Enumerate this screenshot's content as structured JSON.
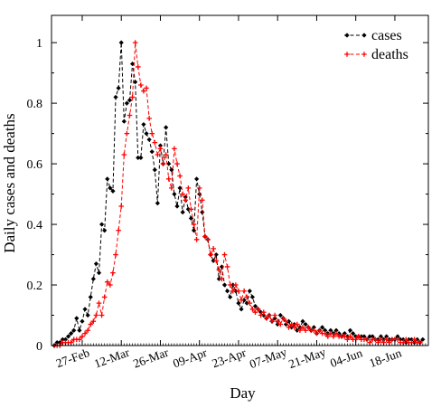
{
  "chart_data": {
    "type": "line",
    "title": "",
    "xlabel": "Day",
    "ylabel": "Daily cases and deaths",
    "ylim": [
      0,
      1.09
    ],
    "yticks": [
      0,
      0.2,
      0.4,
      0.6,
      0.8,
      1
    ],
    "ytick_labels": [
      "0",
      "0.2",
      "0.4",
      "0.6",
      "0.8",
      "1"
    ],
    "xlim": [
      "2020-02-16",
      "2020-06-30"
    ],
    "x_start": "2020-02-17",
    "xticks": [
      "2020-02-27",
      "2020-03-12",
      "2020-03-26",
      "2020-04-09",
      "2020-04-23",
      "2020-05-07",
      "2020-05-21",
      "2020-06-04",
      "2020-06-18"
    ],
    "xtick_labels": [
      "27-Feb",
      "12-Mar",
      "26-Mar",
      "09-Apr",
      "23-Apr",
      "07-May",
      "21-May",
      "04-Jun",
      "18-Jun"
    ],
    "grid": false,
    "legend_position": "top-right",
    "series": [
      {
        "name": "cases",
        "color": "#000000",
        "marker": "diamond",
        "values": [
          0.0,
          0.01,
          0.01,
          0.02,
          0.02,
          0.03,
          0.04,
          0.05,
          0.09,
          0.05,
          0.08,
          0.12,
          0.1,
          0.16,
          0.22,
          0.27,
          0.24,
          0.4,
          0.38,
          0.55,
          0.52,
          0.51,
          0.82,
          0.85,
          1.0,
          0.74,
          0.8,
          0.81,
          0.93,
          0.87,
          0.62,
          0.62,
          0.73,
          0.7,
          0.68,
          0.64,
          0.58,
          0.47,
          0.66,
          0.6,
          0.72,
          0.6,
          0.58,
          0.5,
          0.46,
          0.52,
          0.44,
          0.49,
          0.45,
          0.42,
          0.38,
          0.55,
          0.5,
          0.44,
          0.36,
          0.35,
          0.3,
          0.28,
          0.3,
          0.22,
          0.26,
          0.2,
          0.18,
          0.16,
          0.2,
          0.18,
          0.14,
          0.12,
          0.15,
          0.14,
          0.18,
          0.16,
          0.13,
          0.12,
          0.11,
          0.1,
          0.09,
          0.1,
          0.08,
          0.09,
          0.07,
          0.1,
          0.09,
          0.07,
          0.08,
          0.06,
          0.07,
          0.05,
          0.06,
          0.08,
          0.07,
          0.06,
          0.05,
          0.06,
          0.04,
          0.05,
          0.06,
          0.05,
          0.04,
          0.05,
          0.04,
          0.05,
          0.04,
          0.03,
          0.04,
          0.03,
          0.05,
          0.04,
          0.03,
          0.03,
          0.03,
          0.03,
          0.02,
          0.03,
          0.03,
          0.02,
          0.02,
          0.03,
          0.02,
          0.03,
          0.02,
          0.02,
          0.02,
          0.03,
          0.02,
          0.02,
          0.01,
          0.02,
          0.02,
          0.01,
          0.02,
          0.01,
          0.02
        ]
      },
      {
        "name": "deaths",
        "color": "#ff0000",
        "marker": "plus",
        "values": [
          0.0,
          0.0,
          0.0,
          0.01,
          0.01,
          0.01,
          0.01,
          0.02,
          0.02,
          0.02,
          0.03,
          0.04,
          0.05,
          0.07,
          0.08,
          0.1,
          0.14,
          0.1,
          0.16,
          0.21,
          0.2,
          0.24,
          0.3,
          0.38,
          0.46,
          0.63,
          0.7,
          0.76,
          0.82,
          1.0,
          0.92,
          0.86,
          0.84,
          0.85,
          0.75,
          0.7,
          0.67,
          0.63,
          0.65,
          0.6,
          0.63,
          0.55,
          0.52,
          0.65,
          0.6,
          0.56,
          0.5,
          0.48,
          0.52,
          0.45,
          0.4,
          0.35,
          0.52,
          0.48,
          0.36,
          0.35,
          0.3,
          0.32,
          0.28,
          0.25,
          0.22,
          0.3,
          0.26,
          0.2,
          0.18,
          0.2,
          0.18,
          0.15,
          0.18,
          0.16,
          0.14,
          0.12,
          0.11,
          0.12,
          0.1,
          0.11,
          0.09,
          0.1,
          0.08,
          0.1,
          0.08,
          0.07,
          0.09,
          0.08,
          0.06,
          0.07,
          0.06,
          0.07,
          0.05,
          0.06,
          0.05,
          0.06,
          0.05,
          0.05,
          0.04,
          0.05,
          0.04,
          0.04,
          0.03,
          0.04,
          0.03,
          0.04,
          0.03,
          0.03,
          0.03,
          0.02,
          0.03,
          0.02,
          0.02,
          0.03,
          0.02,
          0.02,
          0.02,
          0.01,
          0.02,
          0.02,
          0.01,
          0.02,
          0.01,
          0.02,
          0.01,
          0.02,
          0.02,
          0.02,
          0.01,
          0.01,
          0.02,
          0.01,
          0.01,
          0.02,
          0.01,
          0.01
        ]
      }
    ]
  }
}
